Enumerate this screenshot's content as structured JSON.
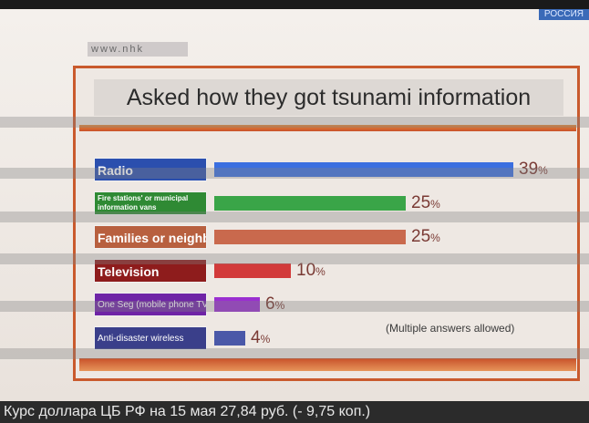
{
  "overlay": {
    "channel": "РОССИЯ",
    "site": "www.nhk",
    "ticker": "Курс доллара ЦБ РФ на 15 мая 27,84 руб. (- 9,75 коп.)"
  },
  "chart_data": {
    "type": "bar",
    "orientation": "horizontal",
    "title": "Asked how they got tsunami information",
    "categories": [
      "Radio",
      "Fire stations' or municipal information vans",
      "Families or neighbors",
      "Television",
      "One Seg (mobile phone TV)",
      "Anti-disaster wireless"
    ],
    "values": [
      39,
      25,
      25,
      10,
      6,
      4
    ],
    "value_labels": [
      "39",
      "25",
      "25",
      "10",
      "6",
      "4"
    ],
    "unit": "%",
    "xlim": [
      0,
      40
    ],
    "label_colors": [
      "#2b4fae",
      "#2f8a34",
      "#b8603f",
      "#8e1c1c",
      "#6f24a6",
      "#3a3f8a"
    ],
    "bar_colors": [
      "#3b6fe0",
      "#3aa548",
      "#c9694d",
      "#d23a3a",
      "#9a2fd0",
      "#4a58a8"
    ],
    "note": "(Multiple answers allowed)",
    "grid": false,
    "legend": "none"
  }
}
